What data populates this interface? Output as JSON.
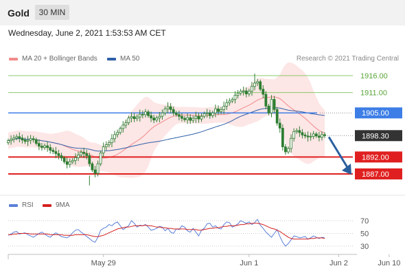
{
  "header": {
    "instrument": "Gold",
    "timeframe": "30 MIN"
  },
  "datetime": "Wednesday, June 2, 2021 1:53:53 AM CET",
  "legend": {
    "items": [
      {
        "label": "MA 20 + Bollinger Bands",
        "color": "#f28b8b"
      },
      {
        "label": "MA 50",
        "color": "#2f5fa8"
      }
    ],
    "credit": "Research © 2021 Trading Central"
  },
  "colors": {
    "resistance": "#8bc86b",
    "pivot": "#3d7ee6",
    "support": "#e02020",
    "current": "#333333",
    "arrow": "#2a5f9e",
    "band_fill": "#fde3e3",
    "ma20": "#f08a8a",
    "ma50": "#2f5fa8",
    "candle": "#2f7d32",
    "rsi": "#5a7fd8",
    "rsi_ma": "#d42020"
  },
  "levels": [
    {
      "label": "1916.00",
      "value": 1916.0,
      "type": "resistance"
    },
    {
      "label": "1911.00",
      "value": 1911.0,
      "type": "resistance"
    },
    {
      "label": "1905.00",
      "value": 1905.0,
      "type": "pivot"
    },
    {
      "label": "1898.30",
      "value": 1898.3,
      "type": "current"
    },
    {
      "label": "1892.00",
      "value": 1892.0,
      "type": "support"
    },
    {
      "label": "1887.00",
      "value": 1887.0,
      "type": "support"
    }
  ],
  "xaxis": {
    "ticks": [
      {
        "label": "May 29",
        "index": 34
      },
      {
        "label": "Jun 1",
        "index": 86
      },
      {
        "label": "Jun 2",
        "index": 118
      },
      {
        "label": "Jun 10",
        "index": 136
      }
    ]
  },
  "rsi": {
    "legend": [
      {
        "label": "RSI",
        "color": "#5a7fd8"
      },
      {
        "label": "9MA",
        "color": "#d42020"
      }
    ],
    "ticks": [
      "70",
      "50",
      "30"
    ],
    "levels": [
      70,
      50,
      30
    ]
  },
  "chart_data": {
    "type": "candlestick",
    "price_scale": {
      "min": 1884,
      "max": 1919
    },
    "rsi_scale": {
      "min": 20,
      "max": 80
    },
    "close_series": [
      1896.8,
      1897.2,
      1897.6,
      1898.0,
      1897.6,
      1897.0,
      1896.6,
      1896.9,
      1897.4,
      1897.1,
      1896.0,
      1895.2,
      1894.8,
      1895.3,
      1894.8,
      1894.0,
      1893.6,
      1893.0,
      1892.4,
      1891.7,
      1890.6,
      1889.8,
      1890.6,
      1891.0,
      1891.8,
      1892.6,
      1893.4,
      1893.0,
      1892.4,
      1890.0,
      1888.2,
      1887.2,
      1890.0,
      1893.2,
      1895.0,
      1895.6,
      1896.2,
      1897.4,
      1898.6,
      1899.2,
      1900.4,
      1901.4,
      1902.1,
      1903.5,
      1903.9,
      1903.3,
      1903.8,
      1904.6,
      1904.5,
      1905.3,
      1904.2,
      1903.5,
      1902.9,
      1903.5,
      1904.0,
      1905.0,
      1906.2,
      1906.8,
      1906.0,
      1905.0,
      1904.5,
      1904.0,
      1903.4,
      1903.0,
      1903.6,
      1902.8,
      1903.4,
      1904.0,
      1903.2,
      1904.0,
      1904.8,
      1905.0,
      1904.2,
      1905.0,
      1906.2,
      1905.4,
      1906.0,
      1907.0,
      1908.0,
      1908.5,
      1909.0,
      1910.2,
      1910.8,
      1911.4,
      1911.5,
      1910.6,
      1911.4,
      1912.8,
      1913.8,
      1914.2,
      1912.0,
      1910.5,
      1907.0,
      1905.0,
      1909.0,
      1906.0,
      1902.0,
      1900.5,
      1895.0,
      1893.5,
      1894.5,
      1897.5,
      1899.5,
      1899.8,
      1899.2,
      1898.5,
      1898.2,
      1897.9,
      1898.1,
      1898.8,
      1898.2,
      1897.8,
      1898.6,
      1898.3
    ],
    "rsi_series": [
      47,
      49,
      52,
      53,
      49,
      50,
      51,
      48,
      46,
      44,
      47,
      50,
      52,
      49,
      46,
      44,
      48,
      51,
      48,
      45,
      44,
      43,
      46,
      51,
      55,
      56,
      52,
      49,
      45,
      42,
      38,
      36,
      44,
      55,
      58,
      60,
      64,
      62,
      66,
      68,
      62,
      56,
      59,
      62,
      70,
      66,
      60,
      63,
      62,
      64,
      60,
      55,
      56,
      58,
      61,
      60,
      54,
      58,
      52,
      50,
      57,
      56,
      62,
      60,
      54,
      52,
      58,
      52,
      46,
      55,
      58,
      65,
      66,
      60,
      62,
      58,
      57,
      64,
      68,
      67,
      60,
      62,
      65,
      70,
      68,
      66,
      68,
      64,
      67,
      72,
      63,
      58,
      52,
      48,
      44,
      50,
      56,
      45,
      36,
      30,
      34,
      40,
      46,
      45,
      43,
      44,
      45,
      41,
      43,
      46,
      44,
      42,
      44,
      43
    ],
    "rsi_ma_series": [
      48,
      48,
      49,
      49,
      50,
      50,
      50,
      50,
      49,
      49,
      49,
      49,
      49,
      49,
      49,
      48,
      48,
      48,
      48,
      48,
      47,
      47,
      47,
      47,
      48,
      48,
      48,
      48,
      48,
      47,
      46,
      45,
      45,
      46,
      47,
      49,
      51,
      53,
      55,
      57,
      58,
      59,
      60,
      60,
      61,
      62,
      62,
      62,
      62,
      63,
      62,
      62,
      61,
      60,
      60,
      59,
      59,
      58,
      58,
      57,
      57,
      57,
      57,
      57,
      56,
      56,
      56,
      56,
      55,
      55,
      56,
      57,
      58,
      58,
      59,
      59,
      60,
      61,
      61,
      62,
      62,
      62,
      63,
      64,
      64,
      65,
      65,
      66,
      66,
      66,
      65,
      64,
      62,
      60,
      58,
      57,
      55,
      53,
      50,
      47,
      44,
      42,
      41,
      41,
      41,
      41,
      41,
      41,
      42,
      42,
      43,
      43,
      43,
      42
    ]
  }
}
